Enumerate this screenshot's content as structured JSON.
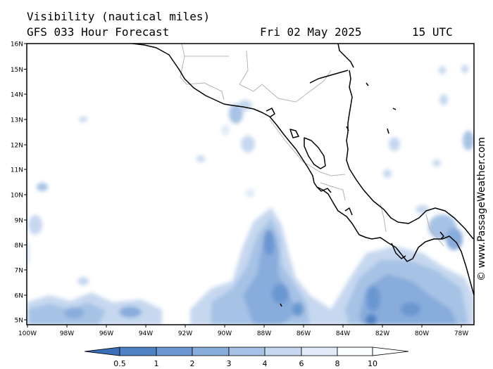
{
  "header": {
    "title": "Visibility (nautical miles)",
    "forecast": "GFS 033 Hour Forecast",
    "date": "Fri 02 May 2025",
    "time": "15 UTC"
  },
  "credit": "© www.PassageWeather.com",
  "map": {
    "lat_labels": [
      "16N",
      "15N",
      "14N",
      "13N",
      "12N",
      "11N",
      "10N",
      "9N",
      "8N",
      "7N",
      "6N",
      "5N"
    ],
    "lon_labels": [
      "100W",
      "98W",
      "96W",
      "94W",
      "92W",
      "90W",
      "88W",
      "86W",
      "84W",
      "82W",
      "80W",
      "78W"
    ],
    "colors": {
      "land_outline": "#000000",
      "borders": "#b4b4b4",
      "frame": "#000000"
    }
  },
  "legend": {
    "labels": [
      "0.5",
      "1",
      "2",
      "3",
      "4",
      "6",
      "8",
      "10"
    ],
    "colors": [
      "#3a6fb8",
      "#4f82c5",
      "#6b97d0",
      "#88acdb",
      "#a6c2e5",
      "#c6d8ef",
      "#e2ecf8",
      "#fbfdff"
    ]
  }
}
